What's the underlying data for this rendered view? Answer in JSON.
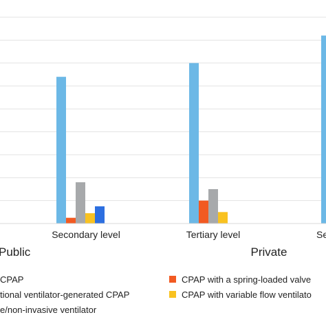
{
  "chart_data": {
    "type": "bar",
    "ylim": [
      0,
      9
    ],
    "grid": true,
    "categories": [
      "Secondary level",
      "Tertiary level",
      "Se"
    ],
    "groups": [
      "Public",
      "Private"
    ],
    "series": [
      {
        "name": "CPAP",
        "color": "#6cb8e6",
        "values": [
          6.4,
          7.0,
          8.2
        ]
      },
      {
        "name": "CPAP with a spring-loaded valve",
        "color": "#f25a22",
        "values": [
          0.25,
          1.0,
          null
        ]
      },
      {
        "name": "tional ventilator-generated CPAP",
        "color": "#a7a9ab",
        "values": [
          1.8,
          1.5,
          null
        ]
      },
      {
        "name": "CPAP with variable flow ventilato",
        "color": "#f9c220",
        "values": [
          0.45,
          0.5,
          null
        ]
      },
      {
        "name": "e/non-invasive ventilator",
        "color": "#2d6fe0",
        "values": [
          0.75,
          null,
          null
        ]
      }
    ]
  }
}
